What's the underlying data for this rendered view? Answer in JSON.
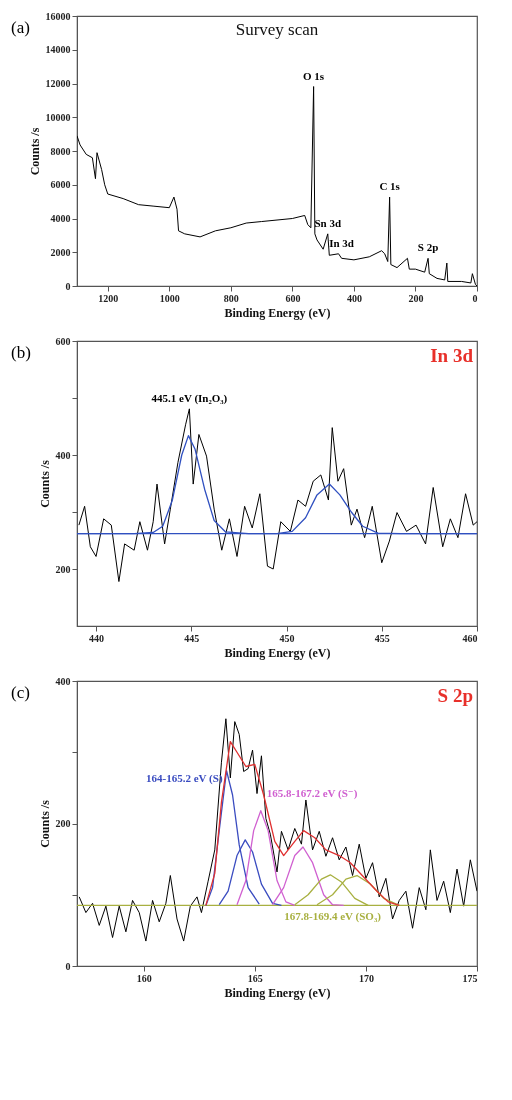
{
  "chart_data": [
    {
      "type": "line",
      "title": "Survey scan",
      "xlabel": "Binding Energy (eV)",
      "ylabel": "Counts /s",
      "xlim": [
        1300,
        0
      ],
      "xticks": [
        1200,
        1000,
        800,
        600,
        400,
        200,
        0
      ],
      "ylim": [
        0,
        16000
      ],
      "yticks": [
        0,
        2000,
        4000,
        6000,
        8000,
        10000,
        12000,
        14000,
        16000
      ],
      "annotations": [
        "(a)",
        {
          "text": "O 1s",
          "x": 531,
          "y": 11820
        },
        {
          "text": "Sn 3d",
          "x": 485,
          "y": 3090
        },
        {
          "text": "In 3d",
          "x": 440,
          "y": 1640
        },
        {
          "text": "C 1s",
          "x": 284,
          "y": 5270
        },
        {
          "text": "S 2p",
          "x": 159,
          "y": 1640
        }
      ],
      "series": [
        {
          "color": "#000000",
          "x": [
            1300,
            1290,
            1270,
            1250,
            1240,
            1235,
            1220,
            1210,
            1200,
            1150,
            1100,
            1050,
            1000,
            985,
            975,
            970,
            950,
            900,
            850,
            800,
            750,
            700,
            650,
            600,
            560,
            550,
            540,
            531,
            527,
            520,
            500,
            485,
            480,
            450,
            440,
            400,
            350,
            310,
            300,
            290,
            284,
            280,
            260,
            226,
            220,
            200,
            170,
            159,
            155,
            130,
            105,
            98,
            95,
            50,
            20,
            15,
            5,
            0
          ],
          "values": [
            8900,
            8360,
            7800,
            7600,
            6360,
            7900,
            6900,
            6000,
            5450,
            5180,
            4820,
            4730,
            4640,
            5270,
            4550,
            3270,
            3090,
            2910,
            3270,
            3450,
            3730,
            3820,
            3910,
            4000,
            4180,
            3640,
            3450,
            11820,
            3090,
            2730,
            2180,
            3090,
            1820,
            1910,
            1640,
            1550,
            1730,
            2090,
            1910,
            1450,
            5270,
            1270,
            1090,
            1640,
            1000,
            1000,
            820,
            1640,
            730,
            450,
            360,
            1360,
            270,
            270,
            180,
            730,
            90,
            0
          ]
        }
      ]
    },
    {
      "type": "line",
      "title": "In 3d",
      "xlabel": "Binding Energy (eV)",
      "ylabel": "Counts /s",
      "xlim": [
        439,
        460
      ],
      "xticks": [
        440,
        445,
        450,
        455,
        460
      ],
      "ylim": [
        100,
        600
      ],
      "yticks": [
        200,
        {
          "value": 300,
          "label": null
        },
        400,
        {
          "value": 500,
          "label": null
        },
        600
      ],
      "annotations": [
        "(b)",
        {
          "text": "445.1 eV (In₂O₃)",
          "x": 444.9,
          "y": 481
        }
      ],
      "series": [
        {
          "color": "#000000",
          "x": [
            439.1,
            439.4,
            439.7,
            440,
            440.4,
            440.8,
            441.2,
            441.5,
            442,
            442.3,
            442.7,
            443,
            443.2,
            443.6,
            443.9,
            444.3,
            444.7,
            444.9,
            445.1,
            445.4,
            445.8,
            446.2,
            446.6,
            447,
            447.4,
            447.8,
            448.2,
            448.6,
            449,
            449.3,
            449.7,
            450.2,
            450.6,
            451,
            451.4,
            451.8,
            452.2,
            452.4,
            452.7,
            453,
            453.4,
            453.7,
            454.1,
            454.5,
            455,
            455.4,
            455.8,
            456.3,
            456.8,
            457.3,
            457.7,
            458.2,
            458.6,
            459,
            459.4,
            459.8,
            460
          ],
          "values": [
            277,
            310,
            239,
            222,
            288,
            277,
            178,
            244,
            233,
            283,
            233,
            283,
            349,
            244,
            305,
            387,
            453,
            481,
            349,
            436,
            398,
            305,
            233,
            288,
            222,
            310,
            272,
            332,
            205,
            200,
            283,
            266,
            321,
            310,
            354,
            365,
            321,
            448,
            354,
            376,
            277,
            305,
            255,
            310,
            211,
            249,
            299,
            266,
            277,
            244,
            343,
            239,
            288,
            255,
            332,
            277,
            283
          ]
        },
        {
          "color": "#3050c0",
          "x": [
            439,
            442,
            443,
            443.5,
            444,
            444.5,
            444.85,
            445.2,
            445.7,
            446.2,
            446.8,
            448,
            449.5,
            450.3,
            451,
            451.6,
            452.25,
            452.8,
            453.4,
            454,
            454.8,
            456,
            460
          ],
          "values": [
            262,
            262,
            264,
            275,
            320,
            400,
            434,
            410,
            340,
            285,
            265,
            262,
            262,
            266,
            290,
            330,
            349,
            330,
            300,
            275,
            263,
            262,
            262
          ]
        },
        {
          "color": "#3050c0",
          "x": [
            439,
            460
          ],
          "values": [
            262,
            262
          ]
        }
      ]
    },
    {
      "type": "line",
      "title": "S 2p",
      "xlabel": "Binding Energy (eV)",
      "ylabel": "Counts /s",
      "xlim": [
        157,
        175
      ],
      "xticks": [
        160,
        165,
        170,
        175
      ],
      "ylim": [
        0,
        400
      ],
      "yticks": [
        0,
        {
          "value": 100,
          "label": null
        },
        200,
        {
          "value": 300,
          "label": null
        },
        400
      ],
      "annotations": [
        "(c)",
        {
          "text": "164-165.2 eV (S)",
          "x": 163.73,
          "y": 274
        },
        {
          "text": "165.8-167.2 eV (S⁻)",
          "x": 165.27,
          "y": 218
        },
        {
          "text": "167.8-169.4 eV (SO₃)",
          "x": 168.5,
          "y": 85
        }
      ],
      "series": [
        {
          "color": "#000000",
          "x": [
            157.1,
            157.4,
            157.7,
            158,
            158.3,
            158.6,
            158.9,
            159.2,
            159.5,
            159.8,
            160.1,
            160.4,
            160.7,
            161,
            161.2,
            161.5,
            161.8,
            162.1,
            162.4,
            162.6,
            162.9,
            163.2,
            163.5,
            163.7,
            163.9,
            164.1,
            164.3,
            164.5,
            164.7,
            164.9,
            165.1,
            165.3,
            165.5,
            165.7,
            166,
            166.2,
            166.5,
            166.8,
            167.1,
            167.3,
            167.6,
            167.9,
            168.2,
            168.5,
            168.8,
            169.1,
            169.4,
            169.7,
            170,
            170.3,
            170.6,
            170.9,
            171.2,
            171.5,
            171.8,
            172.1,
            172.4,
            172.7,
            172.9,
            173.2,
            173.5,
            173.8,
            174.1,
            174.4,
            174.7,
            175
          ],
          "values": [
            97,
            75,
            88,
            57,
            84,
            40,
            84,
            48,
            92,
            75,
            35,
            92,
            62,
            88,
            127,
            66,
            35,
            84,
            97,
            75,
            119,
            163,
            286,
            347,
            264,
            343,
            325,
            273,
            277,
            303,
            242,
            295,
            207,
            185,
            132,
            189,
            163,
            193,
            171,
            233,
            163,
            189,
            154,
            180,
            149,
            167,
            127,
            171,
            123,
            145,
            97,
            123,
            66,
            92,
            105,
            53,
            110,
            79,
            163,
            92,
            119,
            75,
            136,
            84,
            149,
            105
          ]
        },
        {
          "color": "#a8b040",
          "x": [
            157,
            175
          ],
          "values": [
            85,
            85
          ]
        },
        {
          "color": "#3a4cc0",
          "x": [
            162.8,
            163.1,
            163.4,
            163.73,
            164.0,
            164.3,
            164.7,
            165.2
          ],
          "values": [
            85,
            110,
            190,
            274,
            240,
            170,
            110,
            87
          ]
        },
        {
          "color": "#3a4cc0",
          "x": [
            163.4,
            163.8,
            164.2,
            164.57,
            164.9,
            165.3,
            165.8,
            166.2
          ],
          "values": [
            86,
            105,
            155,
            177,
            160,
            115,
            88,
            85
          ]
        },
        {
          "color": "#d060d0",
          "x": [
            164.2,
            164.6,
            164.95,
            165.27,
            165.6,
            166.0,
            166.4,
            166.8
          ],
          "values": [
            86,
            120,
            190,
            218,
            190,
            120,
            90,
            85
          ]
        },
        {
          "color": "#d060d0",
          "x": [
            165.8,
            166.3,
            166.8,
            167.17,
            167.6,
            168.1,
            168.5,
            169.0
          ],
          "values": [
            86,
            110,
            155,
            167,
            145,
            100,
            86,
            85
          ]
        },
        {
          "color": "#a8b040",
          "x": [
            166.8,
            167.4,
            168.0,
            168.4,
            168.9,
            169.5,
            170.1
          ],
          "values": [
            86,
            100,
            122,
            128,
            118,
            95,
            85
          ]
        },
        {
          "color": "#a8b040",
          "x": [
            167.8,
            168.5,
            169.1,
            169.6,
            170.2,
            170.8,
            171.5
          ],
          "values": [
            86,
            100,
            122,
            127,
            115,
            95,
            85
          ]
        },
        {
          "color": "#e03030",
          "x": [
            162.8,
            163.2,
            163.5,
            163.9,
            164.2,
            164.6,
            165.0,
            165.4,
            165.9,
            166.3,
            166.8,
            167.2,
            167.7,
            168.2,
            168.8,
            169.3,
            169.9,
            170.5,
            171.0,
            171.5
          ],
          "values": [
            85,
            130,
            230,
            315,
            300,
            280,
            283,
            240,
            175,
            155,
            175,
            190,
            180,
            163,
            155,
            145,
            125,
            105,
            90,
            85
          ]
        }
      ]
    }
  ]
}
